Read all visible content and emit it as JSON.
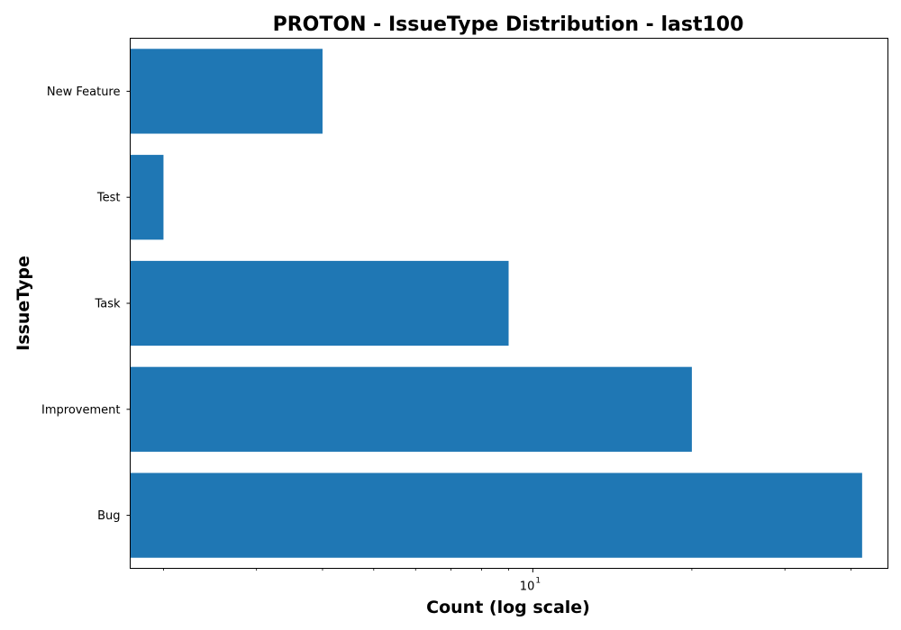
{
  "chart_data": {
    "type": "bar",
    "orientation": "horizontal",
    "title": "PROTON - IssueType Distribution - last100",
    "xlabel": "Count (log scale)",
    "ylabel": "IssueType",
    "x_scale": "log",
    "xlim": [
      1.73,
      47
    ],
    "x_major_ticks": [
      {
        "value": 10,
        "base": "10",
        "exponent": "1"
      }
    ],
    "x_minor_ticks": [
      2,
      3,
      4,
      5,
      6,
      7,
      8,
      9,
      20,
      30,
      40
    ],
    "categories": [
      "Bug",
      "Improvement",
      "Task",
      "Test",
      "New Feature"
    ],
    "values": [
      42,
      20,
      9,
      2,
      4
    ],
    "bar_color": "#1f77b4",
    "grid": false,
    "legend": "none"
  }
}
